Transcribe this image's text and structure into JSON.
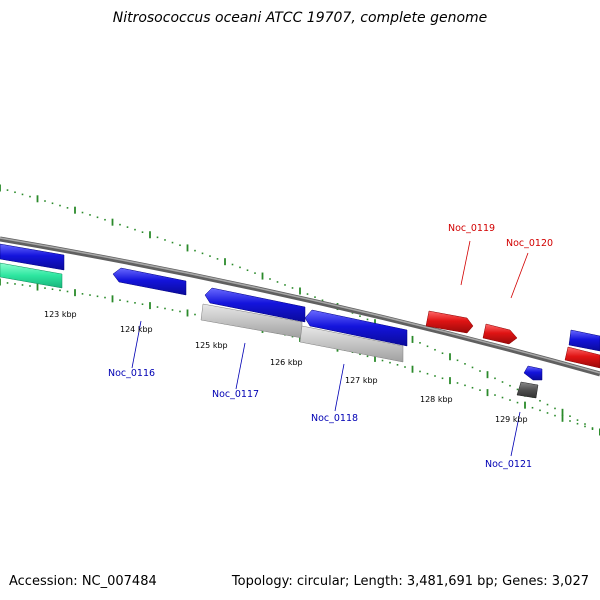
{
  "title": "Nitrosococcus oceani ATCC 19707, complete genome",
  "footer": {
    "accession": "Accession: NC_007484",
    "summary": "Topology: circular; Length: 3,481,691 bp; Genes: 3,027"
  },
  "colors": {
    "forward_gene": "#1414dc",
    "reverse_gene": "#e01414",
    "label_forward": "#0000b4",
    "label_reverse": "#d20000",
    "pseudo_gene": "#b4b4b4",
    "rna_gene": "#505050",
    "green_gene": "#2ee6a0",
    "tick": "#2a8a2a",
    "backbone": "#808080"
  },
  "ticks": [
    "123 kbp",
    "124 kbp",
    "125 kbp",
    "126 kbp",
    "127 kbp",
    "128 kbp",
    "129 kbp"
  ],
  "gene_labels": [
    {
      "text": "Noc_0116",
      "strand": "forward"
    },
    {
      "text": "Noc_0117",
      "strand": "forward"
    },
    {
      "text": "Noc_0118",
      "strand": "forward"
    },
    {
      "text": "Noc_0119",
      "strand": "reverse"
    },
    {
      "text": "Noc_0120",
      "strand": "reverse"
    },
    {
      "text": "Noc_0121",
      "strand": "forward"
    }
  ]
}
